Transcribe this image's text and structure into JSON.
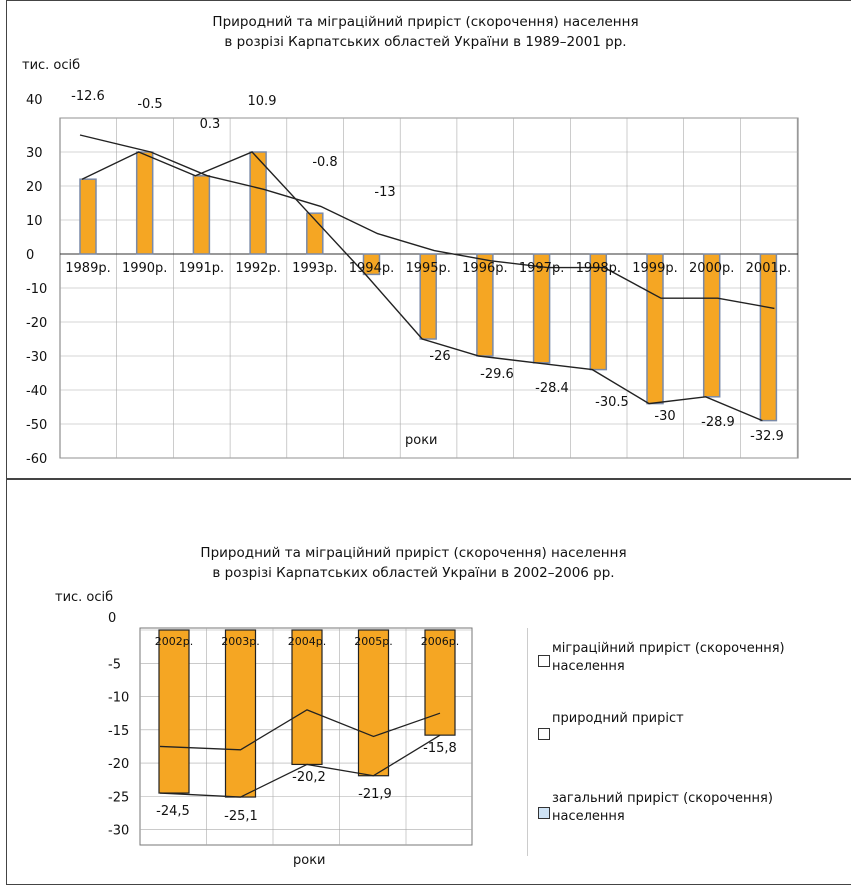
{
  "chart_data": [
    {
      "type": "bar",
      "title": "Природний та міграційний приріст (скорочення) населення\nв розрізі Карпатських областей України в 1989–2001 рр.",
      "ylabel": "тис. осіб",
      "xlabel": "роки",
      "ylim": [
        -60,
        40
      ],
      "yticks": [
        40,
        30,
        20,
        10,
        0,
        -10,
        -20,
        -30,
        -40,
        -50,
        -60
      ],
      "categories": [
        "1989р.",
        "1990р.",
        "1991р.",
        "1992р.",
        "1993р.",
        "1994р.",
        "1995р.",
        "1996р.",
        "1997р.",
        "1998р.",
        "1999р.",
        "2000р.",
        "2001р."
      ],
      "series": [
        {
          "name": "загальний приріст (скорочення) населення",
          "kind": "bar",
          "values": [
            22,
            30,
            23,
            30,
            12,
            -6,
            -25,
            -30,
            -32,
            -34,
            -44,
            -42,
            -49
          ]
        },
        {
          "name": "природний приріст",
          "kind": "line",
          "values": [
            35,
            30,
            23,
            19,
            14,
            6,
            1,
            -2,
            -4,
            -4,
            -13,
            -13,
            -16
          ]
        },
        {
          "name": "міграційний приріст (скорочення) населення",
          "kind": "line",
          "values": [
            22,
            30,
            23,
            30,
            12,
            -6,
            -25,
            -30,
            -32,
            -34,
            -44,
            -42,
            -49
          ]
        }
      ],
      "data_labels": [
        "-12.6",
        "-0.5",
        "0.3",
        "10.9",
        "-0.8",
        "-13",
        "-26",
        "-29.6",
        "-28.4",
        "-30.5",
        "-30",
        "-28.9",
        "-32.9"
      ],
      "grid": true,
      "colors": {
        "bar": "#F5A623",
        "bar_edge": "#7A8AA8",
        "grid": "#aaaaaa",
        "line": "#222222"
      }
    },
    {
      "type": "bar",
      "title": "Природний та міграційний приріст (скорочення) населення\nв розрізі Карпатських областей України в 2002–2006 рр.",
      "ylabel": "тис. осіб",
      "xlabel": "роки",
      "ylim": [
        -30,
        0
      ],
      "yticks": [
        0,
        -5,
        -10,
        -15,
        -20,
        -25,
        -30
      ],
      "categories": [
        "2002р.",
        "2003р.",
        "2004р.",
        "2005р.",
        "2006р."
      ],
      "series": [
        {
          "name": "загальний приріст (скорочення) населення",
          "kind": "bar",
          "values": [
            -24.5,
            -25.1,
            -20.2,
            -21.9,
            -15.8
          ]
        },
        {
          "name": "природний приріст",
          "kind": "line",
          "values": [
            -17.5,
            -18,
            -12,
            -16,
            -12.5
          ]
        },
        {
          "name": "міграційний приріст (скорочення) населення",
          "kind": "line",
          "values": [
            -24.5,
            -25.1,
            -20.2,
            -21.9,
            -15.8
          ]
        }
      ],
      "data_labels": [
        "-24,5",
        "-25,1",
        "-20,2",
        "-21,9",
        "-15,8"
      ],
      "legend": {
        "placement": "right",
        "items": [
          "міграційний приріст (скорочення) населення",
          "природний приріст",
          "загальний приріст (скорочення) населення"
        ]
      },
      "grid": true,
      "colors": {
        "bar": "#F5A623",
        "bar_edge": "#222222",
        "grid": "#aaaaaa",
        "line": "#222222",
        "legend_marker_3": "#cfe3f5"
      }
    }
  ]
}
